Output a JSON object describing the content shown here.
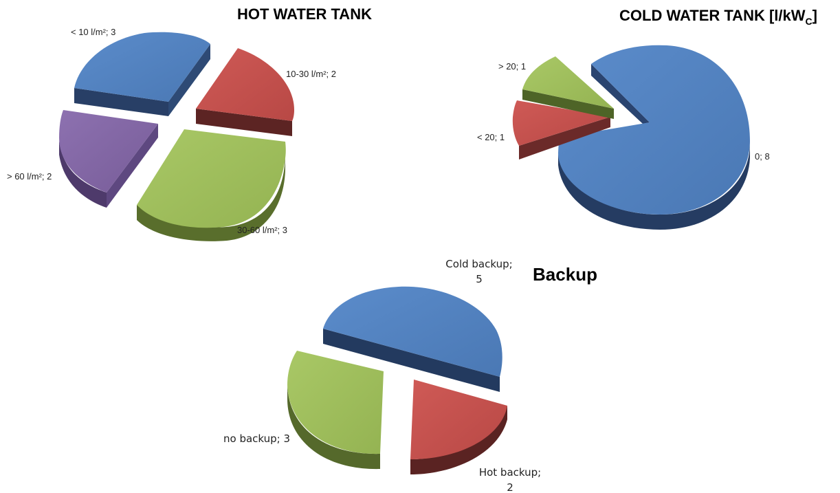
{
  "chart_data": [
    {
      "type": "pie",
      "title": "HOT WATER TANK",
      "categories": [
        "< 10 l/m²",
        "10-30 l/m²",
        "30-60 l/m²",
        "> 60 l/m²"
      ],
      "values": [
        3,
        2,
        3,
        2
      ],
      "labels": [
        "< 10 l/m²; 3",
        "10-30 l/m²; 2",
        "30-60 l/m²; 3",
        "> 60 l/m²; 2"
      ],
      "colors": [
        "#4f81bd",
        "#c0504d",
        "#9bbb59",
        "#8064a2"
      ],
      "exploded": true,
      "style": "3d"
    },
    {
      "type": "pie",
      "title": "COLD WATER TANK [l/kW",
      "title_subscript": "C",
      "title_suffix": "]",
      "categories": [
        "0",
        "< 20",
        "> 20"
      ],
      "values": [
        8,
        1,
        1
      ],
      "labels": [
        "0; 8",
        "< 20; 1",
        "> 20; 1"
      ],
      "colors": [
        "#4f81bd",
        "#c0504d",
        "#9bbb59"
      ],
      "exploded": true,
      "style": "3d"
    },
    {
      "type": "pie",
      "title": "Backup",
      "categories": [
        "Cold backup",
        "Hot backup",
        "no backup"
      ],
      "values": [
        5,
        2,
        3
      ],
      "labels": [
        {
          "line1": "Cold backup;",
          "line2": "5"
        },
        {
          "line1": "Hot backup;",
          "line2": "2"
        },
        {
          "line1": "no backup; 3",
          "line2": ""
        }
      ],
      "colors": [
        "#4f81bd",
        "#c0504d",
        "#9bbb59"
      ],
      "exploded": true,
      "style": "3d"
    }
  ]
}
